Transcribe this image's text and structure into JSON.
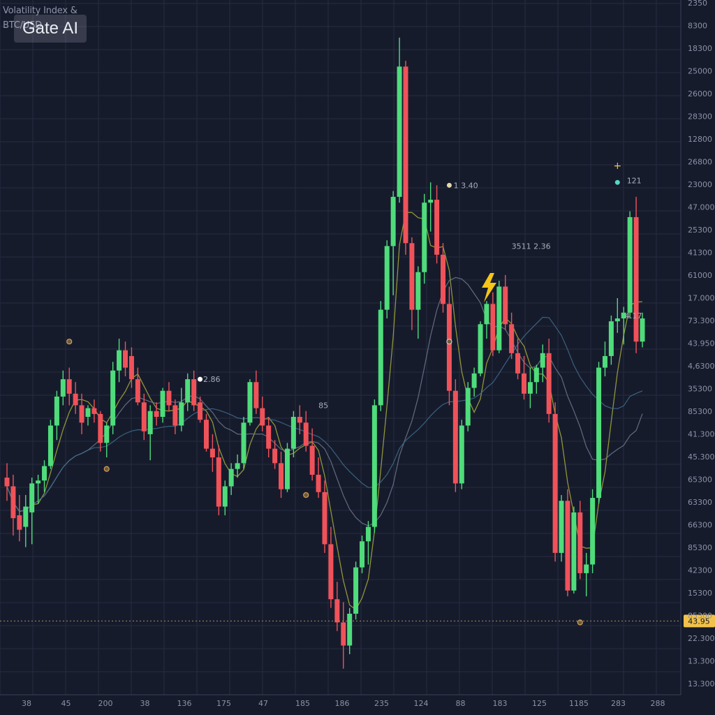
{
  "header": {
    "title_line1": "Volatility Index &",
    "title_line2": "BTC/USD"
  },
  "watermark": "Gate AI",
  "colors": {
    "background": "#161b2c",
    "grid": "#262d40",
    "up": "#4fdc7b",
    "down": "#f0525a",
    "ma_yellow": "#a6aa3c",
    "ma_gray": "#6f7a8e",
    "ma_blue": "#3f6f8e",
    "price_tag": "#f3c24b"
  },
  "chart_data": {
    "type": "candlestick",
    "current_price_label": "43.95",
    "y_ticks": [
      "2350",
      "8300",
      "18300",
      "25000",
      "26000",
      "28300",
      "12800",
      "26800",
      "23000",
      "47.000",
      "25300",
      "41300",
      "61000",
      "17.000",
      "73.300",
      "43.950",
      "4,6300",
      "35300",
      "85300",
      "41.300",
      "45.300",
      "65300",
      "63300",
      "66300",
      "85300",
      "42300",
      "15300",
      "85300",
      "22.300",
      "13.300",
      "13.300"
    ],
    "x_ticks": [
      "38",
      "45",
      "200",
      "38",
      "136",
      "175",
      "47",
      "185",
      "186",
      "235",
      "124",
      "88",
      "183",
      "125",
      "1185",
      "283",
      "288"
    ],
    "annotations": [
      "2.86",
      "85",
      "1 3.40",
      "3511 2.36",
      "121",
      "4.17"
    ],
    "candles": [
      {
        "o": 67.5,
        "h": 70.0,
        "l": 63.5,
        "c": 66.0
      },
      {
        "o": 66.0,
        "h": 68.0,
        "l": 57.5,
        "c": 60.5
      },
      {
        "o": 61.0,
        "h": 64.5,
        "l": 56.5,
        "c": 58.5
      },
      {
        "o": 59.0,
        "h": 64.5,
        "l": 55.5,
        "c": 62.5
      },
      {
        "o": 61.5,
        "h": 67.5,
        "l": 56.0,
        "c": 66.5
      },
      {
        "o": 66.5,
        "h": 68.0,
        "l": 63.0,
        "c": 67.0
      },
      {
        "o": 67.0,
        "h": 70.5,
        "l": 65.0,
        "c": 69.5
      },
      {
        "o": 69.5,
        "h": 77.5,
        "l": 69.0,
        "c": 76.5
      },
      {
        "o": 76.5,
        "h": 82.5,
        "l": 74.0,
        "c": 81.5
      },
      {
        "o": 81.5,
        "h": 86.0,
        "l": 80.0,
        "c": 84.5
      },
      {
        "o": 84.5,
        "h": 86.5,
        "l": 80.0,
        "c": 82.0
      },
      {
        "o": 82.0,
        "h": 84.0,
        "l": 78.5,
        "c": 80.0
      },
      {
        "o": 80.0,
        "h": 82.0,
        "l": 75.0,
        "c": 77.0
      },
      {
        "o": 78.0,
        "h": 80.0,
        "l": 76.5,
        "c": 79.5
      },
      {
        "o": 79.5,
        "h": 81.0,
        "l": 77.0,
        "c": 78.5
      },
      {
        "o": 78.5,
        "h": 79.0,
        "l": 72.0,
        "c": 73.5
      },
      {
        "o": 73.5,
        "h": 77.0,
        "l": 71.0,
        "c": 76.5
      },
      {
        "o": 76.5,
        "h": 87.5,
        "l": 75.0,
        "c": 86.0
      },
      {
        "o": 86.0,
        "h": 91.5,
        "l": 84.0,
        "c": 89.5
      },
      {
        "o": 89.5,
        "h": 91.0,
        "l": 85.0,
        "c": 86.5
      },
      {
        "o": 88.5,
        "h": 90.0,
        "l": 83.0,
        "c": 84.5
      },
      {
        "o": 84.5,
        "h": 86.5,
        "l": 80.0,
        "c": 80.5
      },
      {
        "o": 80.5,
        "h": 82.0,
        "l": 74.0,
        "c": 75.5
      },
      {
        "o": 75.0,
        "h": 80.0,
        "l": 70.5,
        "c": 79.0
      },
      {
        "o": 79.0,
        "h": 80.5,
        "l": 76.5,
        "c": 78.0
      },
      {
        "o": 78.0,
        "h": 83.0,
        "l": 77.0,
        "c": 82.5
      },
      {
        "o": 82.5,
        "h": 84.0,
        "l": 79.0,
        "c": 80.0
      },
      {
        "o": 80.0,
        "h": 81.0,
        "l": 75.0,
        "c": 76.5
      },
      {
        "o": 76.5,
        "h": 83.0,
        "l": 75.5,
        "c": 80.5
      },
      {
        "o": 80.5,
        "h": 85.5,
        "l": 79.0,
        "c": 84.5
      },
      {
        "o": 84.5,
        "h": 86.0,
        "l": 79.0,
        "c": 80.0
      },
      {
        "o": 80.5,
        "h": 81.5,
        "l": 77.0,
        "c": 77.5
      },
      {
        "o": 77.5,
        "h": 78.5,
        "l": 72.0,
        "c": 72.5
      },
      {
        "o": 72.5,
        "h": 75.0,
        "l": 68.5,
        "c": 71.0
      },
      {
        "o": 71.0,
        "h": 73.0,
        "l": 61.0,
        "c": 62.5
      },
      {
        "o": 62.5,
        "h": 67.0,
        "l": 61.0,
        "c": 66.0
      },
      {
        "o": 66.0,
        "h": 70.0,
        "l": 64.5,
        "c": 69.0
      },
      {
        "o": 69.0,
        "h": 71.5,
        "l": 67.5,
        "c": 70.0
      },
      {
        "o": 70.0,
        "h": 78.0,
        "l": 69.0,
        "c": 77.0
      },
      {
        "o": 77.0,
        "h": 84.5,
        "l": 76.5,
        "c": 84.0
      },
      {
        "o": 84.0,
        "h": 86.0,
        "l": 78.5,
        "c": 79.5
      },
      {
        "o": 79.5,
        "h": 81.5,
        "l": 75.5,
        "c": 76.5
      },
      {
        "o": 76.5,
        "h": 78.0,
        "l": 71.0,
        "c": 72.5
      },
      {
        "o": 72.5,
        "h": 74.0,
        "l": 69.0,
        "c": 70.0
      },
      {
        "o": 70.0,
        "h": 72.0,
        "l": 64.0,
        "c": 65.5
      },
      {
        "o": 65.5,
        "h": 73.5,
        "l": 65.0,
        "c": 72.5
      },
      {
        "o": 72.5,
        "h": 79.0,
        "l": 71.0,
        "c": 78.0
      },
      {
        "o": 78.0,
        "h": 80.0,
        "l": 75.0,
        "c": 77.0
      },
      {
        "o": 77.0,
        "h": 79.0,
        "l": 72.0,
        "c": 73.0
      },
      {
        "o": 73.0,
        "h": 76.0,
        "l": 67.0,
        "c": 68.0
      },
      {
        "o": 68.0,
        "h": 71.0,
        "l": 64.0,
        "c": 65.0
      },
      {
        "o": 65.0,
        "h": 67.0,
        "l": 54.5,
        "c": 56.0
      },
      {
        "o": 56.0,
        "h": 59.0,
        "l": 45.0,
        "c": 46.5
      },
      {
        "o": 46.5,
        "h": 49.5,
        "l": 41.0,
        "c": 42.5
      },
      {
        "o": 42.5,
        "h": 46.0,
        "l": 34.5,
        "c": 38.5
      },
      {
        "o": 38.5,
        "h": 45.0,
        "l": 37.0,
        "c": 44.0
      },
      {
        "o": 44.0,
        "h": 53.0,
        "l": 43.0,
        "c": 52.0
      },
      {
        "o": 52.0,
        "h": 57.5,
        "l": 51.0,
        "c": 56.5
      },
      {
        "o": 56.5,
        "h": 60.0,
        "l": 52.5,
        "c": 59.0
      },
      {
        "o": 59.0,
        "h": 81.0,
        "l": 58.0,
        "c": 80.0
      },
      {
        "o": 80.0,
        "h": 98.0,
        "l": 79.0,
        "c": 96.5
      },
      {
        "o": 96.5,
        "h": 108.5,
        "l": 95.0,
        "c": 107.5
      },
      {
        "o": 107.5,
        "h": 117.0,
        "l": 99.0,
        "c": 116.0
      },
      {
        "o": 116.0,
        "h": 143.5,
        "l": 115.0,
        "c": 138.5
      },
      {
        "o": 138.5,
        "h": 139.5,
        "l": 106.0,
        "c": 108.0
      },
      {
        "o": 108.0,
        "h": 109.0,
        "l": 93.0,
        "c": 96.5
      },
      {
        "o": 96.5,
        "h": 104.0,
        "l": 91.5,
        "c": 103.0
      },
      {
        "o": 103.0,
        "h": 116.5,
        "l": 101.0,
        "c": 115.0
      },
      {
        "o": 115.0,
        "h": 118.5,
        "l": 110.0,
        "c": 115.5
      },
      {
        "o": 115.5,
        "h": 118.0,
        "l": 104.5,
        "c": 106.0
      },
      {
        "o": 106.0,
        "h": 108.0,
        "l": 96.0,
        "c": 97.5
      },
      {
        "o": 97.5,
        "h": 100.5,
        "l": 80.0,
        "c": 82.5
      },
      {
        "o": 82.5,
        "h": 84.5,
        "l": 65.0,
        "c": 66.5
      },
      {
        "o": 66.5,
        "h": 77.5,
        "l": 65.5,
        "c": 76.5
      },
      {
        "o": 76.5,
        "h": 84.0,
        "l": 75.5,
        "c": 83.0
      },
      {
        "o": 83.0,
        "h": 86.5,
        "l": 81.5,
        "c": 85.5
      },
      {
        "o": 85.5,
        "h": 94.5,
        "l": 85.0,
        "c": 94.0
      },
      {
        "o": 94.0,
        "h": 98.0,
        "l": 91.5,
        "c": 97.5
      },
      {
        "o": 97.5,
        "h": 99.5,
        "l": 88.5,
        "c": 89.5
      },
      {
        "o": 89.5,
        "h": 101.5,
        "l": 89.0,
        "c": 100.5
      },
      {
        "o": 100.5,
        "h": 102.5,
        "l": 93.0,
        "c": 94.0
      },
      {
        "o": 94.0,
        "h": 96.0,
        "l": 88.0,
        "c": 89.0
      },
      {
        "o": 89.0,
        "h": 91.5,
        "l": 84.5,
        "c": 85.5
      },
      {
        "o": 85.5,
        "h": 88.5,
        "l": 81.0,
        "c": 82.0
      },
      {
        "o": 82.0,
        "h": 86.5,
        "l": 79.5,
        "c": 84.0
      },
      {
        "o": 84.0,
        "h": 87.0,
        "l": 82.0,
        "c": 86.5
      },
      {
        "o": 86.5,
        "h": 90.5,
        "l": 84.0,
        "c": 89.0
      },
      {
        "o": 89.0,
        "h": 91.5,
        "l": 77.0,
        "c": 78.5
      },
      {
        "o": 78.5,
        "h": 80.5,
        "l": 53.0,
        "c": 54.5
      },
      {
        "o": 54.5,
        "h": 64.5,
        "l": 53.0,
        "c": 63.5
      },
      {
        "o": 63.5,
        "h": 65.5,
        "l": 47.0,
        "c": 48.0
      },
      {
        "o": 48.0,
        "h": 62.5,
        "l": 47.5,
        "c": 61.5
      },
      {
        "o": 61.5,
        "h": 63.5,
        "l": 50.0,
        "c": 51.0
      },
      {
        "o": 51.0,
        "h": 54.5,
        "l": 47.0,
        "c": 52.5
      },
      {
        "o": 52.5,
        "h": 65.5,
        "l": 51.0,
        "c": 64.0
      },
      {
        "o": 64.0,
        "h": 87.5,
        "l": 63.0,
        "c": 86.5
      },
      {
        "o": 86.5,
        "h": 91.0,
        "l": 85.0,
        "c": 88.5
      },
      {
        "o": 88.5,
        "h": 95.5,
        "l": 87.0,
        "c": 94.5
      },
      {
        "o": 94.5,
        "h": 98.5,
        "l": 92.5,
        "c": 95.0
      },
      {
        "o": 95.0,
        "h": 97.0,
        "l": 90.5,
        "c": 96.0
      },
      {
        "o": 96.0,
        "h": 113.5,
        "l": 95.0,
        "c": 112.5
      },
      {
        "o": 112.5,
        "h": 116.0,
        "l": 89.0,
        "c": 91.0
      },
      {
        "o": 91.0,
        "h": 96.0,
        "l": 90.0,
        "c": 95.0
      }
    ]
  }
}
